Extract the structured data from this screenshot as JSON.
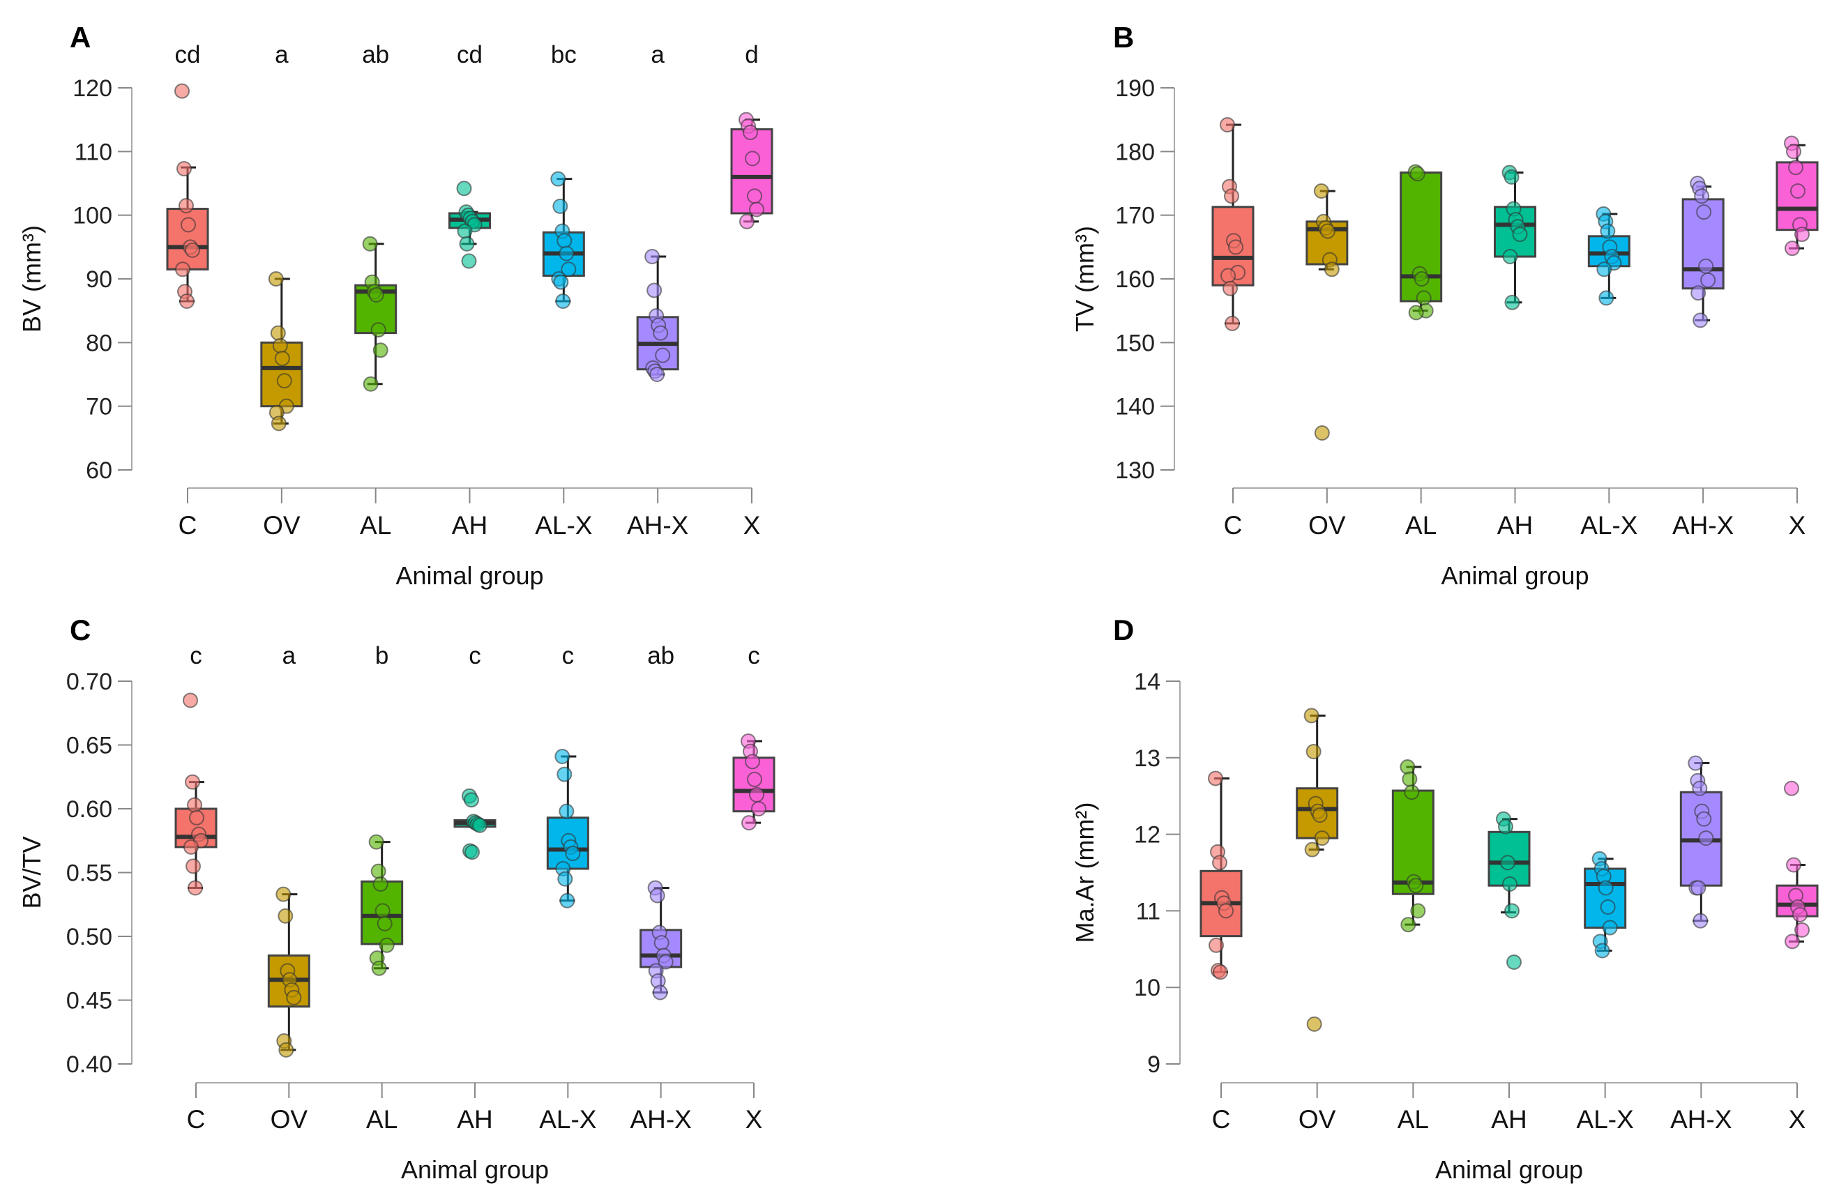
{
  "chart_data": [
    {
      "type": "box",
      "panel_label": "A",
      "xlabel": "Animal group",
      "ylabel": "BV (mm³)",
      "ylim": [
        60,
        120
      ],
      "yticks": [
        60,
        70,
        80,
        90,
        100,
        110,
        120
      ],
      "categories": [
        "C",
        "OV",
        "AL",
        "AH",
        "AL-X",
        "AH-X",
        "X"
      ],
      "significance": [
        "cd",
        "a",
        "ab",
        "cd",
        "bc",
        "a",
        "d"
      ],
      "groups": [
        {
          "q1": 91.5,
          "median": 95,
          "q3": 101,
          "whisker_low": 86.5,
          "whisker_high": 107.5,
          "points": [
            119.5,
            107.3,
            101.5,
            98.5,
            95,
            94.5,
            91.5,
            88,
            86.5
          ]
        },
        {
          "q1": 70,
          "median": 76,
          "q3": 80,
          "whisker_low": 67.3,
          "whisker_high": 90,
          "points": [
            90,
            81.5,
            79.5,
            77.5,
            74,
            70,
            69,
            67.3
          ]
        },
        {
          "q1": 81.5,
          "median": 88,
          "q3": 89,
          "whisker_low": 73.5,
          "whisker_high": 95.5,
          "points": [
            95.5,
            89.5,
            88,
            87.5,
            82,
            78.8,
            73.5
          ]
        },
        {
          "q1": 98,
          "median": 99.3,
          "q3": 100.3,
          "whisker_low": 95.5,
          "whisker_high": 100.5,
          "points": [
            104.2,
            100.5,
            100,
            99.5,
            99,
            98.5,
            97.5,
            95.5,
            92.8
          ]
        },
        {
          "q1": 90.5,
          "median": 94,
          "q3": 97.3,
          "whisker_low": 86.5,
          "whisker_high": 105.7,
          "points": [
            105.7,
            101.4,
            97.5,
            96,
            94,
            91.5,
            90,
            89.5,
            86.5
          ]
        },
        {
          "q1": 75.8,
          "median": 79.8,
          "q3": 84,
          "whisker_low": 75,
          "whisker_high": 93.5,
          "points": [
            93.5,
            88.2,
            84.2,
            82.7,
            81.5,
            78,
            76,
            75.5,
            75
          ]
        },
        {
          "q1": 100.3,
          "median": 106,
          "q3": 113.5,
          "whisker_low": 99,
          "whisker_high": 115,
          "points": [
            115,
            114,
            113,
            108.9,
            103,
            100.9,
            99
          ]
        }
      ]
    },
    {
      "type": "box",
      "panel_label": "B",
      "xlabel": "Animal group",
      "ylabel": "TV (mm³)",
      "ylim": [
        130,
        190
      ],
      "yticks": [
        130,
        140,
        150,
        160,
        170,
        180,
        190
      ],
      "categories": [
        "C",
        "OV",
        "AL",
        "AH",
        "AL-X",
        "AH-X",
        "X"
      ],
      "significance": [],
      "groups": [
        {
          "q1": 159,
          "median": 163.3,
          "q3": 171.3,
          "whisker_low": 153,
          "whisker_high": 184.2,
          "points": [
            184.2,
            174.5,
            173,
            166,
            165,
            161,
            160.5,
            158.5,
            153
          ]
        },
        {
          "q1": 162.3,
          "median": 167.8,
          "q3": 169,
          "whisker_low": 161.5,
          "whisker_high": 173.8,
          "points": [
            173.8,
            169,
            168,
            167.5,
            163,
            161.5,
            135.8
          ]
        },
        {
          "q1": 156.5,
          "median": 160.4,
          "q3": 176.7,
          "whisker_low": 155,
          "whisker_high": 176.7,
          "points": [
            176.8,
            176.5,
            160.8,
            160,
            157,
            155,
            154.7
          ]
        },
        {
          "q1": 163.5,
          "median": 168.5,
          "q3": 171.3,
          "whisker_low": 156.3,
          "whisker_high": 176.7,
          "points": [
            176.7,
            176,
            171,
            169.3,
            168.2,
            167,
            163.5,
            156.3
          ]
        },
        {
          "q1": 162,
          "median": 164,
          "q3": 166.7,
          "whisker_low": 157,
          "whisker_high": 170.2,
          "points": [
            170.2,
            169,
            167.5,
            165,
            163.5,
            162.5,
            161.5,
            157
          ]
        },
        {
          "q1": 158.5,
          "median": 161.5,
          "q3": 172.5,
          "whisker_low": 153.5,
          "whisker_high": 174.5,
          "points": [
            175,
            174.2,
            173,
            170.5,
            162,
            159.8,
            157.8,
            153.5
          ]
        },
        {
          "q1": 167.7,
          "median": 171,
          "q3": 178.3,
          "whisker_low": 164.8,
          "whisker_high": 181,
          "points": [
            181.3,
            180,
            177.5,
            173.8,
            168.5,
            167,
            164.8
          ]
        }
      ]
    },
    {
      "type": "box",
      "panel_label": "C",
      "xlabel": "Animal group",
      "ylabel": "BV/TV",
      "ylim": [
        0.4,
        0.7
      ],
      "yticks": [
        "0.40",
        "0.45",
        "0.50",
        "0.55",
        "0.60",
        "0.65",
        "0.70"
      ],
      "categories": [
        "C",
        "OV",
        "AL",
        "AH",
        "AL-X",
        "AH-X",
        "X"
      ],
      "significance": [
        "c",
        "a",
        "b",
        "c",
        "c",
        "ab",
        "c"
      ],
      "groups": [
        {
          "q1": 0.57,
          "median": 0.578,
          "q3": 0.6,
          "whisker_low": 0.538,
          "whisker_high": 0.621,
          "points": [
            0.685,
            0.621,
            0.603,
            0.593,
            0.58,
            0.575,
            0.57,
            0.555,
            0.538
          ]
        },
        {
          "q1": 0.445,
          "median": 0.466,
          "q3": 0.485,
          "whisker_low": 0.411,
          "whisker_high": 0.533,
          "points": [
            0.533,
            0.516,
            0.473,
            0.466,
            0.458,
            0.452,
            0.418,
            0.411
          ]
        },
        {
          "q1": 0.494,
          "median": 0.516,
          "q3": 0.543,
          "whisker_low": 0.475,
          "whisker_high": 0.574,
          "points": [
            0.574,
            0.551,
            0.541,
            0.52,
            0.51,
            0.493,
            0.483,
            0.475
          ]
        },
        {
          "q1": 0.586,
          "median": 0.589,
          "q3": 0.591,
          "whisker_low": 0.586,
          "whisker_high": 0.591,
          "points": [
            0.61,
            0.607,
            0.59,
            0.589,
            0.588,
            0.587,
            0.567,
            0.566
          ]
        },
        {
          "q1": 0.553,
          "median": 0.568,
          "q3": 0.593,
          "whisker_low": 0.528,
          "whisker_high": 0.641,
          "points": [
            0.641,
            0.627,
            0.598,
            0.575,
            0.57,
            0.565,
            0.553,
            0.545,
            0.528
          ]
        },
        {
          "q1": 0.476,
          "median": 0.485,
          "q3": 0.505,
          "whisker_low": 0.456,
          "whisker_high": 0.538,
          "points": [
            0.538,
            0.532,
            0.503,
            0.495,
            0.485,
            0.48,
            0.473,
            0.465,
            0.456
          ]
        },
        {
          "q1": 0.598,
          "median": 0.614,
          "q3": 0.64,
          "whisker_low": 0.589,
          "whisker_high": 0.653,
          "points": [
            0.653,
            0.645,
            0.637,
            0.623,
            0.611,
            0.6,
            0.589
          ]
        }
      ]
    },
    {
      "type": "box",
      "panel_label": "D",
      "xlabel": "Animal group",
      "ylabel": "Ma.Ar (mm²)",
      "ylim": [
        9,
        14
      ],
      "yticks": [
        9,
        10,
        11,
        12,
        13,
        14
      ],
      "categories": [
        "C",
        "OV",
        "AL",
        "AH",
        "AL-X",
        "AH-X",
        "X"
      ],
      "significance": [],
      "groups": [
        {
          "q1": 10.67,
          "median": 11.1,
          "q3": 11.52,
          "whisker_low": 10.2,
          "whisker_high": 12.73,
          "points": [
            12.73,
            11.77,
            11.63,
            11.17,
            11.1,
            11.0,
            10.55,
            10.22,
            10.2
          ]
        },
        {
          "q1": 11.95,
          "median": 12.33,
          "q3": 12.6,
          "whisker_low": 11.8,
          "whisker_high": 13.55,
          "points": [
            13.55,
            13.08,
            12.4,
            12.3,
            12.25,
            11.95,
            11.8,
            9.52
          ]
        },
        {
          "q1": 11.22,
          "median": 11.37,
          "q3": 12.57,
          "whisker_low": 10.82,
          "whisker_high": 12.88,
          "points": [
            12.88,
            12.72,
            12.55,
            11.38,
            11.33,
            11.0,
            10.82
          ]
        },
        {
          "q1": 11.33,
          "median": 11.63,
          "q3": 12.03,
          "whisker_low": 10.98,
          "whisker_high": 12.2,
          "points": [
            12.2,
            12.1,
            11.63,
            11.35,
            11.0,
            10.33
          ]
        },
        {
          "q1": 10.78,
          "median": 11.35,
          "q3": 11.55,
          "whisker_low": 10.48,
          "whisker_high": 11.68,
          "points": [
            11.68,
            11.55,
            11.45,
            11.3,
            11.05,
            10.78,
            10.6,
            10.48
          ]
        },
        {
          "q1": 11.33,
          "median": 11.92,
          "q3": 12.55,
          "whisker_low": 10.87,
          "whisker_high": 12.93,
          "points": [
            12.93,
            12.7,
            12.6,
            12.3,
            12.2,
            11.95,
            11.3,
            11.3,
            10.87
          ]
        },
        {
          "q1": 10.93,
          "median": 11.08,
          "q3": 11.33,
          "whisker_low": 10.6,
          "whisker_high": 11.6,
          "points": [
            12.6,
            11.6,
            11.2,
            11.05,
            10.95,
            10.75,
            10.6
          ]
        }
      ]
    }
  ],
  "colors": {
    "C": "#f4736b",
    "OV": "#c49a00",
    "AL": "#53b400",
    "AH": "#00c094",
    "AL-X": "#00b6eb",
    "AH-X": "#a58aff",
    "X": "#fb61d7"
  }
}
